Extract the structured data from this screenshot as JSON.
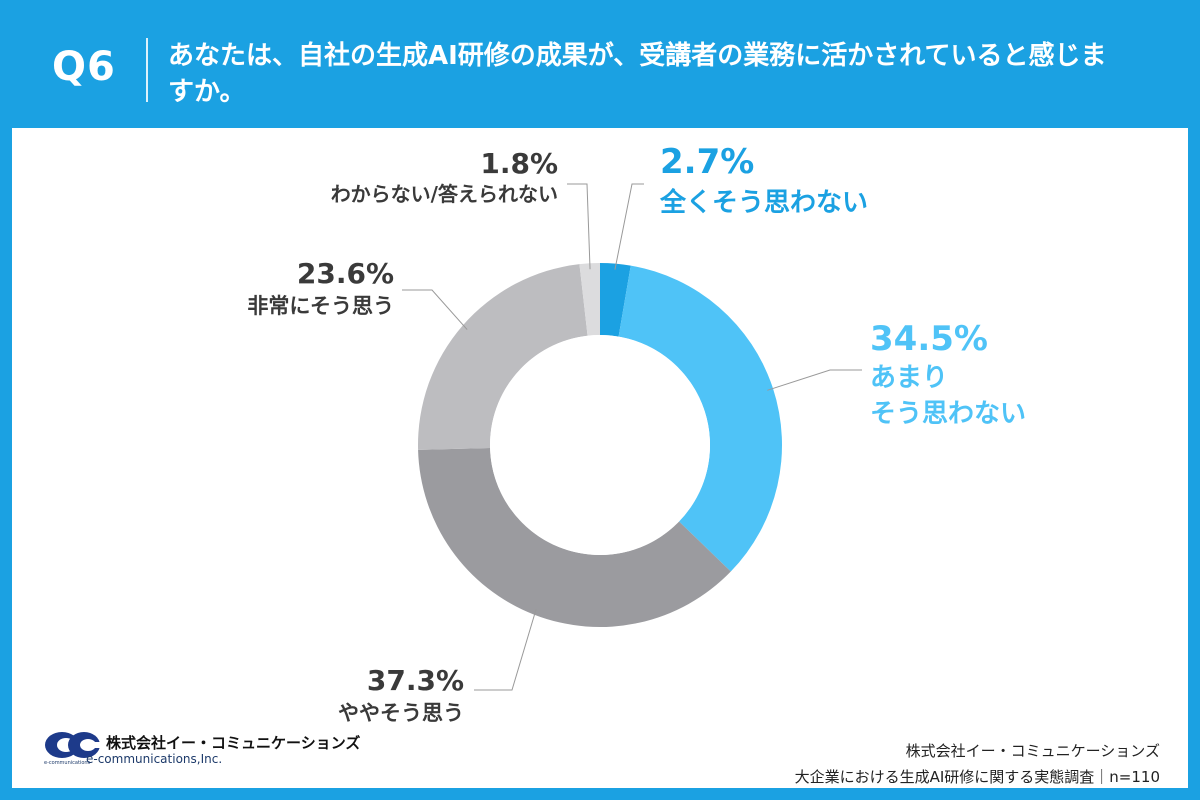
{
  "header": {
    "question_number": "Q6",
    "question_text": "あなたは、自社の生成AI研修の成果が、受講者の業務に活かされていると感じますか。"
  },
  "chart_data": {
    "type": "pie",
    "donut": true,
    "order": "clockwise from top",
    "slices": [
      {
        "label": "全くそう思わない",
        "value": 2.7,
        "value_label": "2.7%",
        "color": "#1ba1e2",
        "label_color": "#1ba1e2"
      },
      {
        "label": "あまり そう思わない",
        "value": 34.5,
        "value_label": "34.5%",
        "color": "#4fc3f7",
        "label_color": "#4fc3f7"
      },
      {
        "label": "ややそう思う",
        "value": 37.3,
        "value_label": "37.3%",
        "color": "#9b9b9f",
        "label_color": "#3a3a3a"
      },
      {
        "label": "非常にそう思う",
        "value": 23.6,
        "value_label": "23.6%",
        "color": "#bdbdc0",
        "label_color": "#3a3a3a"
      },
      {
        "label": "わからない/答えられない",
        "value": 1.8,
        "value_label": "1.8%",
        "color": "#dcdcde",
        "label_color": "#3a3a3a"
      }
    ]
  },
  "footer": {
    "logo_company": "株式会社イー・コミュニケーションズ",
    "logo_sub": "e-communications,Inc.",
    "logo_tiny": "e-communications",
    "source_company": "株式会社イー・コミュニケーションズ",
    "source_survey": "大企業における生成AI研修に関する実態調査｜n=110"
  }
}
